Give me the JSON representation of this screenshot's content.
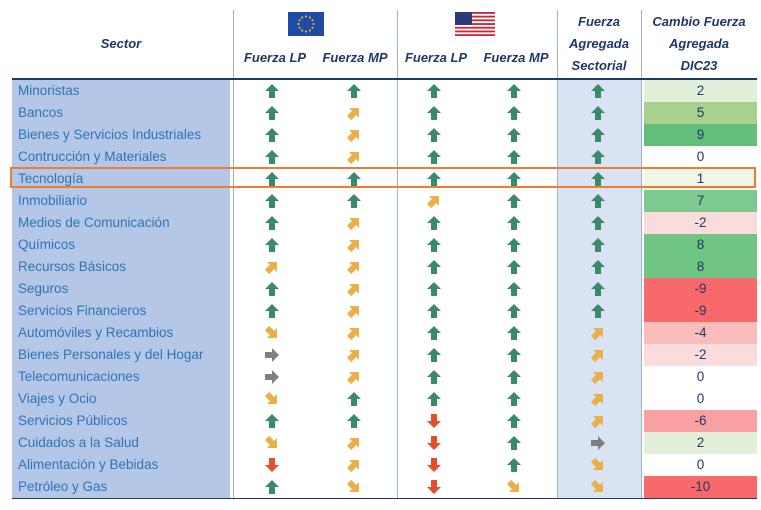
{
  "header": {
    "sector": "Sector",
    "cols": [
      "Fuerza LP",
      "Fuerza MP",
      "Fuerza LP",
      "Fuerza MP"
    ],
    "agg_line1": "Fuerza",
    "agg_line2": "Agregada",
    "agg_line3": "Sectorial",
    "chg_line1": "Cambio Fuerza",
    "chg_line2": "Agregada",
    "chg_line3": "DIC23",
    "flag_left": "eu-flag-icon",
    "flag_right": "us-flag-icon"
  },
  "colors": {
    "up": "#3a8a6a",
    "diag_up": "#e8b04a",
    "diag_down": "#e8b04a",
    "right": "#7f7f7f",
    "down": "#e2502a",
    "highlight": "#ed7d31"
  },
  "highlighted_row": "Tecnología",
  "rows": [
    {
      "sector": "Minoristas",
      "arrows": [
        "up",
        "up",
        "up",
        "up",
        "up"
      ],
      "change": "2",
      "bg": "#e2f0d9"
    },
    {
      "sector": "Bancos",
      "arrows": [
        "up",
        "diag_up",
        "up",
        "up",
        "up"
      ],
      "change": "5",
      "bg": "#a9d18e"
    },
    {
      "sector": "Bienes y Servicios Industriales",
      "arrows": [
        "up",
        "diag_up",
        "up",
        "up",
        "up"
      ],
      "change": "9",
      "bg": "#63be7b"
    },
    {
      "sector": "Contrucción y Materiales",
      "arrows": [
        "up",
        "diag_up",
        "up",
        "up",
        "up"
      ],
      "change": "0",
      "bg": "#ffffff"
    },
    {
      "sector": "Tecnología",
      "arrows": [
        "up",
        "up",
        "up",
        "up",
        "up"
      ],
      "change": "1",
      "bg": "#eef7e8"
    },
    {
      "sector": "Inmobiliario",
      "arrows": [
        "up",
        "up",
        "diag_up",
        "up",
        "up"
      ],
      "change": "7",
      "bg": "#7ec98f"
    },
    {
      "sector": "Medios de Comunicación",
      "arrows": [
        "up",
        "diag_up",
        "up",
        "up",
        "up"
      ],
      "change": "-2",
      "bg": "#fbdcdc"
    },
    {
      "sector": "Químicos",
      "arrows": [
        "up",
        "diag_up",
        "up",
        "up",
        "up"
      ],
      "change": "8",
      "bg": "#70c484"
    },
    {
      "sector": "Recursos Básicos",
      "arrows": [
        "diag_up",
        "diag_up",
        "up",
        "up",
        "up"
      ],
      "change": "8",
      "bg": "#70c484"
    },
    {
      "sector": "Seguros",
      "arrows": [
        "up",
        "diag_up",
        "up",
        "up",
        "up"
      ],
      "change": "-9",
      "bg": "#f8696b"
    },
    {
      "sector": "Servicios Financieros",
      "arrows": [
        "up",
        "diag_up",
        "up",
        "up",
        "up"
      ],
      "change": "-9",
      "bg": "#f8696b"
    },
    {
      "sector": "Automóviles y Recambios",
      "arrows": [
        "diag_down",
        "diag_up",
        "up",
        "up",
        "diag_up"
      ],
      "change": "-4",
      "bg": "#fbbcbc"
    },
    {
      "sector": "Bienes Personales y del Hogar",
      "arrows": [
        "right",
        "diag_up",
        "up",
        "up",
        "diag_up"
      ],
      "change": "-2",
      "bg": "#fbdcdc"
    },
    {
      "sector": "Telecomunicaciones",
      "arrows": [
        "right",
        "diag_up",
        "up",
        "up",
        "diag_up"
      ],
      "change": "0",
      "bg": "#ffffff"
    },
    {
      "sector": "Viajes y Ocio",
      "arrows": [
        "diag_down",
        "up",
        "up",
        "up",
        "diag_up"
      ],
      "change": "0",
      "bg": "#ffffff"
    },
    {
      "sector": "Servicios Públicos",
      "arrows": [
        "up",
        "up",
        "down",
        "up",
        "diag_up"
      ],
      "change": "-6",
      "bg": "#f9a0a2"
    },
    {
      "sector": "Cuidados a la Salud",
      "arrows": [
        "diag_down",
        "diag_up",
        "down",
        "up",
        "right"
      ],
      "change": "2",
      "bg": "#e2f0d9"
    },
    {
      "sector": "Alimentación y Bebidas",
      "arrows": [
        "down",
        "diag_up",
        "down",
        "up",
        "diag_down"
      ],
      "change": "0",
      "bg": "#ffffff"
    },
    {
      "sector": "Petróleo y Gas",
      "arrows": [
        "up",
        "diag_down",
        "down",
        "diag_down",
        "diag_down"
      ],
      "change": "-10",
      "bg": "#f8696b"
    }
  ]
}
